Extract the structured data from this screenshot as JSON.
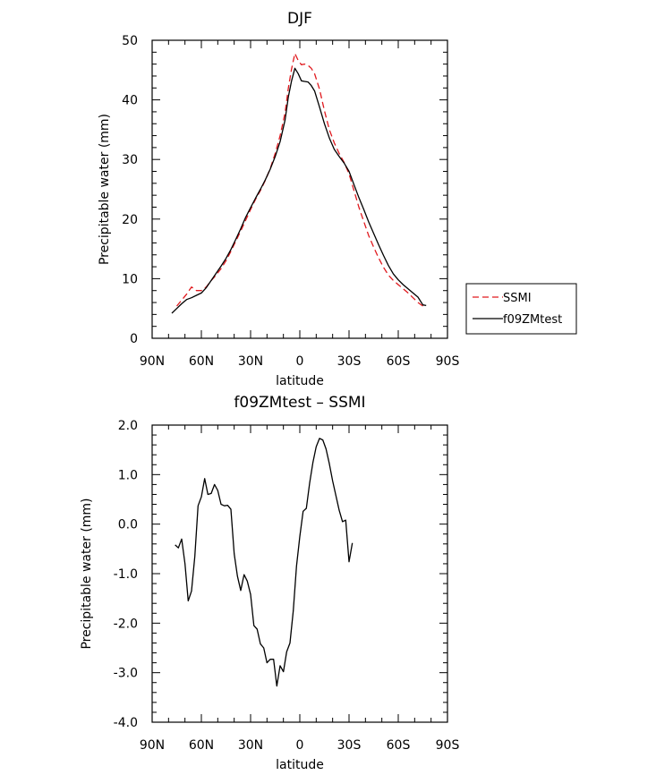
{
  "chart_data": [
    {
      "type": "line",
      "title": "DJF",
      "xlabel": "latitude",
      "ylabel": "Precipitable water (mm)",
      "xlim": [
        -90,
        90
      ],
      "ylim": [
        0,
        50
      ],
      "xticks": [
        {
          "value": -90,
          "label": "90N"
        },
        {
          "value": -60,
          "label": "60N"
        },
        {
          "value": -30,
          "label": "30N"
        },
        {
          "value": 0,
          "label": "0"
        },
        {
          "value": 30,
          "label": "30S"
        },
        {
          "value": 60,
          "label": "60S"
        },
        {
          "value": 90,
          "label": "90S"
        }
      ],
      "yticks": [
        {
          "value": 0,
          "label": "0"
        },
        {
          "value": 10,
          "label": "10"
        },
        {
          "value": 20,
          "label": "20"
        },
        {
          "value": 30,
          "label": "30"
        },
        {
          "value": 40,
          "label": "40"
        },
        {
          "value": 50,
          "label": "50"
        }
      ],
      "legend": {
        "position": "right",
        "entries": [
          "SSMI",
          "f09ZMtest"
        ]
      },
      "series": [
        {
          "name": "SSMI",
          "color": "#e0191e",
          "dash": "dashed",
          "points": [
            [
              -75,
              5.4
            ],
            [
              -72,
              6.4
            ],
            [
              -69,
              7.4
            ],
            [
              -66,
              8.6
            ],
            [
              -63,
              8.0
            ],
            [
              -60,
              8.0
            ],
            [
              -57,
              8.6
            ],
            [
              -54,
              9.7
            ],
            [
              -51,
              10.6
            ],
            [
              -48,
              11.7
            ],
            [
              -45,
              13.0
            ],
            [
              -42,
              14.6
            ],
            [
              -39,
              16.3
            ],
            [
              -36,
              18.0
            ],
            [
              -33,
              19.8
            ],
            [
              -30,
              21.6
            ],
            [
              -27,
              23.3
            ],
            [
              -24,
              24.8
            ],
            [
              -21,
              26.5
            ],
            [
              -18,
              28.5
            ],
            [
              -15,
              31.0
            ],
            [
              -12,
              34.0
            ],
            [
              -9,
              37.8
            ],
            [
              -7,
              42.0
            ],
            [
              -5,
              45.2
            ],
            [
              -3,
              47.8
            ],
            [
              -1,
              46.6
            ],
            [
              1,
              45.9
            ],
            [
              3,
              46.0
            ],
            [
              5,
              45.8
            ],
            [
              7,
              45.3
            ],
            [
              9,
              44.4
            ],
            [
              12,
              41.8
            ],
            [
              15,
              38.2
            ],
            [
              18,
              35.0
            ],
            [
              21,
              32.8
            ],
            [
              24,
              31.0
            ],
            [
              27,
              29.5
            ],
            [
              30,
              27.6
            ],
            [
              33,
              24.8
            ],
            [
              36,
              22.0
            ],
            [
              39,
              19.6
            ],
            [
              42,
              17.2
            ],
            [
              45,
              15.3
            ],
            [
              48,
              13.5
            ],
            [
              51,
              11.9
            ],
            [
              54,
              10.6
            ],
            [
              57,
              9.7
            ],
            [
              60,
              9.0
            ],
            [
              63,
              8.3
            ],
            [
              66,
              7.6
            ],
            [
              69,
              6.8
            ],
            [
              72,
              6.0
            ],
            [
              75,
              5.4
            ]
          ]
        },
        {
          "name": "f09ZMtest",
          "color": "#000000",
          "dash": "solid",
          "points": [
            [
              -78,
              4.2
            ],
            [
              -75,
              5.0
            ],
            [
              -72,
              5.8
            ],
            [
              -69,
              6.5
            ],
            [
              -66,
              6.8
            ],
            [
              -63,
              7.2
            ],
            [
              -60,
              7.6
            ],
            [
              -57,
              8.5
            ],
            [
              -54,
              9.7
            ],
            [
              -51,
              10.9
            ],
            [
              -48,
              12.1
            ],
            [
              -45,
              13.4
            ],
            [
              -42,
              14.9
            ],
            [
              -39,
              16.6
            ],
            [
              -36,
              18.4
            ],
            [
              -33,
              20.3
            ],
            [
              -30,
              21.9
            ],
            [
              -27,
              23.5
            ],
            [
              -24,
              25.0
            ],
            [
              -21,
              26.6
            ],
            [
              -18,
              28.4
            ],
            [
              -15,
              30.5
            ],
            [
              -12,
              33.0
            ],
            [
              -9,
              36.6
            ],
            [
              -7,
              40.5
            ],
            [
              -5,
              43.2
            ],
            [
              -3,
              45.3
            ],
            [
              -1,
              44.4
            ],
            [
              1,
              43.2
            ],
            [
              3,
              43.1
            ],
            [
              5,
              43.0
            ],
            [
              7,
              42.4
            ],
            [
              9,
              41.5
            ],
            [
              12,
              38.8
            ],
            [
              15,
              36.0
            ],
            [
              18,
              33.6
            ],
            [
              21,
              31.7
            ],
            [
              24,
              30.5
            ],
            [
              27,
              29.4
            ],
            [
              30,
              28.0
            ],
            [
              33,
              25.8
            ],
            [
              36,
              23.6
            ],
            [
              39,
              21.6
            ],
            [
              42,
              19.5
            ],
            [
              45,
              17.6
            ],
            [
              48,
              15.7
            ],
            [
              51,
              13.9
            ],
            [
              54,
              12.2
            ],
            [
              57,
              10.8
            ],
            [
              60,
              9.8
            ],
            [
              63,
              9.0
            ],
            [
              66,
              8.3
            ],
            [
              69,
              7.6
            ],
            [
              72,
              6.9
            ],
            [
              75,
              5.6
            ],
            [
              77,
              5.5
            ]
          ]
        }
      ]
    },
    {
      "type": "line",
      "title": "f09ZMtest – SSMI",
      "xlabel": "latitude",
      "ylabel": "Precipitable water (mm)",
      "xlim": [
        -90,
        90
      ],
      "ylim": [
        -4,
        2
      ],
      "xticks": [
        {
          "value": -90,
          "label": "90N"
        },
        {
          "value": -60,
          "label": "60N"
        },
        {
          "value": -30,
          "label": "30N"
        },
        {
          "value": 0,
          "label": "0"
        },
        {
          "value": 30,
          "label": "30S"
        },
        {
          "value": 60,
          "label": "60S"
        },
        {
          "value": 90,
          "label": "90S"
        }
      ],
      "yticks": [
        {
          "value": 2,
          "label": "2.0"
        },
        {
          "value": 1,
          "label": "1.0"
        },
        {
          "value": 0,
          "label": "0.0"
        },
        {
          "value": -1,
          "label": "-1.0"
        },
        {
          "value": -2,
          "label": "-2.0"
        },
        {
          "value": -3,
          "label": "-3.0"
        },
        {
          "value": -4,
          "label": "-4.0"
        }
      ],
      "series": [
        {
          "color": "#000000",
          "dash": "solid",
          "points": [
            [
              -76,
              -0.42
            ],
            [
              -74,
              -0.48
            ],
            [
              -72,
              -0.3
            ],
            [
              -70,
              -0.8
            ],
            [
              -68,
              -1.55
            ],
            [
              -66,
              -1.35
            ],
            [
              -64,
              -0.65
            ],
            [
              -62,
              0.37
            ],
            [
              -60,
              0.55
            ],
            [
              -58,
              0.92
            ],
            [
              -56,
              0.6
            ],
            [
              -54,
              0.62
            ],
            [
              -52,
              0.8
            ],
            [
              -50,
              0.68
            ],
            [
              -48,
              0.4
            ],
            [
              -46,
              0.37
            ],
            [
              -44,
              0.38
            ],
            [
              -42,
              0.3
            ],
            [
              -40,
              -0.6
            ],
            [
              -38,
              -1.05
            ],
            [
              -36,
              -1.34
            ],
            [
              -34,
              -1.02
            ],
            [
              -32,
              -1.15
            ],
            [
              -30,
              -1.42
            ],
            [
              -28,
              -2.05
            ],
            [
              -26,
              -2.12
            ],
            [
              -24,
              -2.42
            ],
            [
              -22,
              -2.5
            ],
            [
              -20,
              -2.8
            ],
            [
              -18,
              -2.73
            ],
            [
              -16,
              -2.73
            ],
            [
              -14,
              -3.27
            ],
            [
              -12,
              -2.86
            ],
            [
              -10,
              -2.98
            ],
            [
              -8,
              -2.58
            ],
            [
              -6,
              -2.4
            ],
            [
              -4,
              -1.75
            ],
            [
              -2,
              -0.85
            ],
            [
              0,
              -0.25
            ],
            [
              2,
              0.26
            ],
            [
              4,
              0.32
            ],
            [
              6,
              0.83
            ],
            [
              8,
              1.25
            ],
            [
              10,
              1.56
            ],
            [
              12,
              1.73
            ],
            [
              14,
              1.7
            ],
            [
              16,
              1.52
            ],
            [
              18,
              1.22
            ],
            [
              20,
              0.87
            ],
            [
              22,
              0.58
            ],
            [
              24,
              0.28
            ],
            [
              26,
              0.05
            ],
            [
              28,
              0.08
            ],
            [
              30,
              -0.76
            ],
            [
              32,
              -0.38
            ]
          ]
        }
      ]
    }
  ]
}
